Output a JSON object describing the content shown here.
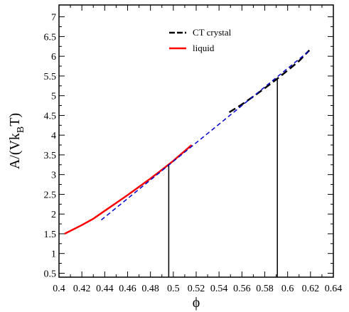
{
  "chart_data": {
    "type": "line",
    "ylabel": "A/(Vk",
    "ylabel_subscript": "B",
    "ylabel_suffix": "T)",
    "xlabel": "ϕ",
    "xlim": [
      0.4,
      0.64
    ],
    "ylim": [
      0.4,
      7.3
    ],
    "x_tick_labels": [
      "0.4",
      "0.42",
      "0.44",
      "0.46",
      "0.48",
      "0.5",
      "0.52",
      "0.54",
      "0.56",
      "0.58",
      "0.6",
      "0.62",
      "0.64"
    ],
    "x_tick_values": [
      0.4,
      0.42,
      0.44,
      0.46,
      0.48,
      0.5,
      0.52,
      0.54,
      0.56,
      0.58,
      0.6,
      0.62,
      0.64
    ],
    "y_tick_labels": [
      "0.5",
      "1",
      "1.5",
      "2",
      "2.5",
      "3",
      "3.5",
      "4",
      "4.5",
      "5",
      "5.5",
      "6",
      "6.5",
      "7"
    ],
    "y_tick_values": [
      0.5,
      1,
      1.5,
      2,
      2.5,
      3,
      3.5,
      4,
      4.5,
      5,
      5.5,
      6,
      6.5,
      7
    ],
    "legend_position": "top-right",
    "series": [
      {
        "name": "CT crystal",
        "color": "#000000",
        "style": "dashed",
        "x": [
          0.549,
          0.56,
          0.57,
          0.58,
          0.59,
          0.6,
          0.61,
          0.619
        ],
        "y": [
          4.58,
          4.78,
          4.98,
          5.19,
          5.41,
          5.64,
          5.88,
          6.15
        ]
      },
      {
        "name": "liquid",
        "color": "#ff0000",
        "style": "solid",
        "x": [
          0.405,
          0.42,
          0.43,
          0.44,
          0.45,
          0.46,
          0.47,
          0.48,
          0.49,
          0.5,
          0.51,
          0.516
        ],
        "y": [
          1.5,
          1.72,
          1.88,
          2.08,
          2.28,
          2.48,
          2.69,
          2.9,
          3.12,
          3.35,
          3.6,
          3.75
        ]
      },
      {
        "color": "#0000cc",
        "style": "dashed",
        "x": [
          0.437,
          0.619
        ],
        "y": [
          1.85,
          6.14
        ]
      }
    ],
    "vertical_lines": [
      {
        "x": 0.496,
        "y_top": 3.23,
        "color": "#000000"
      },
      {
        "x": 0.591,
        "y_top": 5.45,
        "color": "#000000"
      }
    ]
  }
}
